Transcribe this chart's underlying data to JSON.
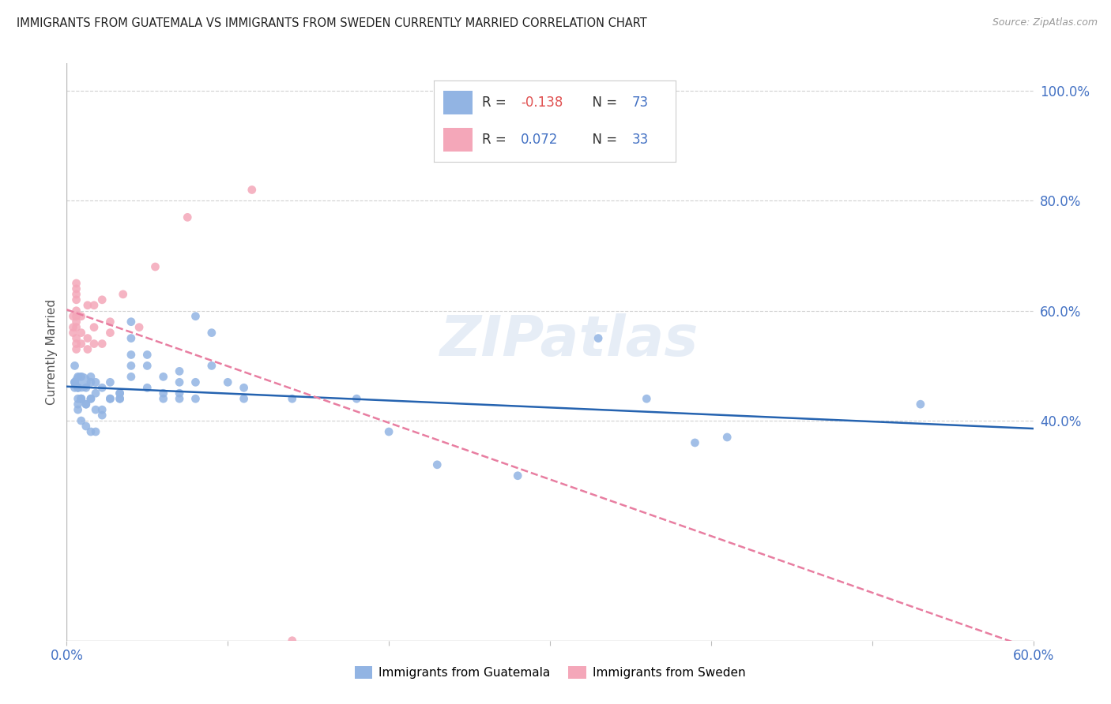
{
  "title": "IMMIGRANTS FROM GUATEMALA VS IMMIGRANTS FROM SWEDEN CURRENTLY MARRIED CORRELATION CHART",
  "source": "Source: ZipAtlas.com",
  "ylabel": "Currently Married",
  "xlim": [
    0.0,
    0.6
  ],
  "ylim": [
    0.0,
    1.05
  ],
  "color_guatemala": "#92b4e3",
  "color_sweden": "#f4a7b9",
  "line_color_guatemala": "#2563b0",
  "line_color_sweden": "#e87ea1",
  "guatemala_x": [
    0.005,
    0.005,
    0.005,
    0.005,
    0.005,
    0.007,
    0.007,
    0.007,
    0.007,
    0.007,
    0.007,
    0.009,
    0.009,
    0.009,
    0.009,
    0.009,
    0.009,
    0.012,
    0.012,
    0.012,
    0.012,
    0.015,
    0.015,
    0.015,
    0.015,
    0.015,
    0.018,
    0.018,
    0.018,
    0.018,
    0.022,
    0.022,
    0.022,
    0.027,
    0.027,
    0.027,
    0.033,
    0.033,
    0.033,
    0.033,
    0.04,
    0.04,
    0.04,
    0.04,
    0.04,
    0.05,
    0.05,
    0.05,
    0.06,
    0.06,
    0.06,
    0.07,
    0.07,
    0.07,
    0.07,
    0.08,
    0.08,
    0.08,
    0.09,
    0.09,
    0.1,
    0.11,
    0.11,
    0.14,
    0.18,
    0.2,
    0.23,
    0.28,
    0.33,
    0.36,
    0.39,
    0.41,
    0.53
  ],
  "guatemala_y": [
    0.47,
    0.47,
    0.47,
    0.46,
    0.5,
    0.46,
    0.46,
    0.44,
    0.43,
    0.42,
    0.48,
    0.44,
    0.44,
    0.44,
    0.4,
    0.48,
    0.47,
    0.46,
    0.43,
    0.43,
    0.39,
    0.44,
    0.44,
    0.47,
    0.38,
    0.48,
    0.38,
    0.45,
    0.42,
    0.47,
    0.46,
    0.42,
    0.41,
    0.47,
    0.44,
    0.44,
    0.45,
    0.44,
    0.44,
    0.45,
    0.55,
    0.58,
    0.5,
    0.52,
    0.48,
    0.5,
    0.52,
    0.46,
    0.48,
    0.45,
    0.44,
    0.47,
    0.49,
    0.45,
    0.44,
    0.59,
    0.47,
    0.44,
    0.56,
    0.5,
    0.47,
    0.44,
    0.46,
    0.44,
    0.44,
    0.38,
    0.32,
    0.3,
    0.55,
    0.44,
    0.36,
    0.37,
    0.43
  ],
  "guatemala_size": [
    60,
    60,
    60,
    60,
    60,
    60,
    60,
    60,
    60,
    60,
    60,
    60,
    60,
    60,
    60,
    60,
    300,
    60,
    60,
    60,
    60,
    60,
    60,
    60,
    60,
    60,
    60,
    60,
    60,
    60,
    60,
    60,
    60,
    60,
    60,
    60,
    60,
    60,
    60,
    60,
    60,
    60,
    60,
    60,
    60,
    60,
    60,
    60,
    60,
    60,
    60,
    60,
    60,
    60,
    60,
    60,
    60,
    60,
    60,
    60,
    60,
    60,
    60,
    60,
    60,
    60,
    60,
    60,
    60,
    60,
    60,
    60,
    60
  ],
  "sweden_x": [
    0.004,
    0.004,
    0.004,
    0.006,
    0.006,
    0.006,
    0.006,
    0.006,
    0.006,
    0.006,
    0.006,
    0.006,
    0.006,
    0.006,
    0.009,
    0.009,
    0.009,
    0.013,
    0.013,
    0.013,
    0.017,
    0.017,
    0.017,
    0.022,
    0.022,
    0.027,
    0.027,
    0.035,
    0.045,
    0.055,
    0.075,
    0.115,
    0.14
  ],
  "sweden_y": [
    0.56,
    0.57,
    0.59,
    0.53,
    0.54,
    0.55,
    0.57,
    0.58,
    0.59,
    0.6,
    0.62,
    0.63,
    0.64,
    0.65,
    0.54,
    0.56,
    0.59,
    0.53,
    0.55,
    0.61,
    0.54,
    0.57,
    0.61,
    0.62,
    0.54,
    0.56,
    0.58,
    0.63,
    0.57,
    0.68,
    0.77,
    0.82,
    0.0
  ],
  "sweden_size": [
    60,
    60,
    60,
    60,
    60,
    60,
    60,
    60,
    60,
    60,
    60,
    60,
    60,
    60,
    60,
    60,
    60,
    60,
    60,
    60,
    60,
    60,
    60,
    60,
    60,
    60,
    60,
    60,
    60,
    60,
    60,
    60,
    60
  ],
  "watermark": "ZIPatlas",
  "background_color": "#ffffff",
  "grid_color": "#d0d0d0",
  "yticks": [
    0.4,
    0.6,
    0.8,
    1.0
  ],
  "ytick_labels": [
    "40.0%",
    "60.0%",
    "80.0%",
    "100.0%"
  ]
}
